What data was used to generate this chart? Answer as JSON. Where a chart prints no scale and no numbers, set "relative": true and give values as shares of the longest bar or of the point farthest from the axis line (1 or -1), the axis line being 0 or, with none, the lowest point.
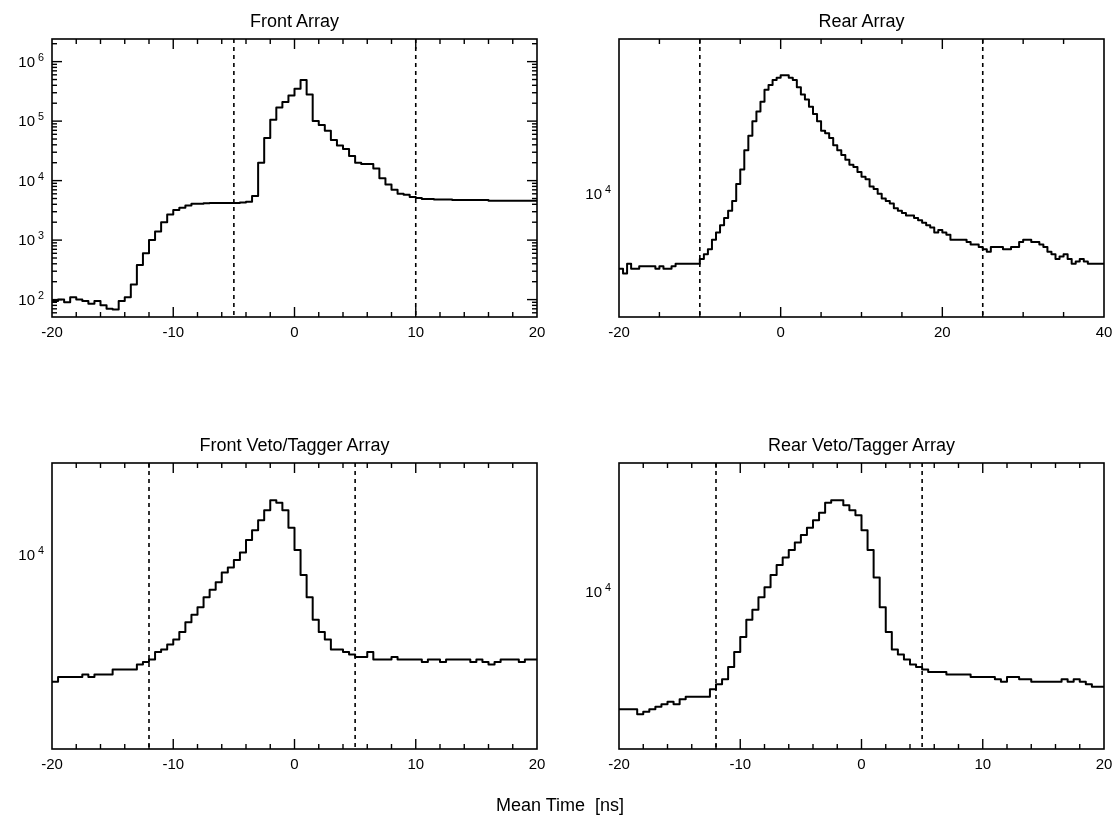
{
  "chart_data": [
    {
      "type": "histogram",
      "title": "Front Array",
      "color": "#000000",
      "log": "y",
      "bins": [
        -20,
        -19.5,
        -19,
        -18.5,
        -18,
        -17.5,
        -17,
        -16.5,
        -16,
        -15.5,
        -15,
        -14.5,
        -14,
        -13.5,
        -13,
        -12.5,
        -12,
        -11.5,
        -11,
        -10.5,
        -10,
        -9.5,
        -9,
        -8.5,
        -8,
        -7.5,
        -7,
        -6.5,
        -6,
        -5.5,
        -5,
        -4.5,
        -4,
        -3.5,
        -3,
        -2.5,
        -2,
        -1.5,
        -1,
        -0.5,
        0,
        0.5,
        1,
        1.5,
        2,
        2.5,
        3,
        3.5,
        4,
        4.5,
        5,
        5.5,
        6,
        6.5,
        7,
        7.5,
        8,
        8.5,
        9,
        9.5,
        10,
        10.5,
        11,
        11.5,
        12,
        12.5,
        13,
        13.5,
        14,
        14.5,
        15,
        15.5,
        16,
        16.5,
        17,
        17.5,
        18,
        18.5,
        19,
        19.5,
        20
      ],
      "values": [
        95,
        100,
        90,
        110,
        100,
        95,
        85,
        95,
        80,
        70,
        68,
        95,
        110,
        180,
        380,
        600,
        1000,
        1400,
        2000,
        2700,
        3200,
        3500,
        3800,
        4100,
        4100,
        4150,
        4200,
        4200,
        4200,
        4200,
        4200,
        4300,
        4400,
        5500,
        20000,
        52000,
        105000,
        170000,
        210000,
        270000,
        350000,
        490000,
        280000,
        100000,
        86000,
        69000,
        48000,
        39000,
        34000,
        26000,
        20000,
        19000,
        19000,
        16000,
        11000,
        8600,
        7000,
        6000,
        5800,
        5300,
        5100,
        4900,
        4900,
        4800,
        4800,
        4800,
        4700,
        4700,
        4700,
        4700,
        4700,
        4700,
        4600,
        4600,
        4600,
        4600,
        4600,
        4600,
        4600,
        4600
      ],
      "xlim": [
        -20,
        20
      ],
      "xticks": [
        -20,
        {
          "value": -18,
          "label": null
        },
        {
          "value": -16,
          "label": null
        },
        {
          "value": -14,
          "label": null
        },
        {
          "value": -12,
          "label": null
        },
        -10,
        {
          "value": -8,
          "label": null
        },
        {
          "value": -6,
          "label": null
        },
        {
          "value": -4,
          "label": null
        },
        {
          "value": -2,
          "label": null
        },
        0,
        {
          "value": 2,
          "label": null
        },
        {
          "value": 4,
          "label": null
        },
        {
          "value": 6,
          "label": null
        },
        {
          "value": 8,
          "label": null
        },
        10,
        {
          "value": 12,
          "label": null
        },
        {
          "value": 14,
          "label": null
        },
        {
          "value": 16,
          "label": null
        },
        {
          "value": 18,
          "label": null
        },
        20
      ],
      "ylim": [
        51,
        2400000
      ],
      "yticks": [
        {
          "value": 60,
          "label": null
        },
        {
          "value": 70,
          "label": null
        },
        {
          "value": 80,
          "label": null
        },
        {
          "value": 90,
          "label": null
        },
        {
          "value": 100,
          "label": "10$^{2}$"
        },
        {
          "value": 200,
          "label": null
        },
        {
          "value": 300,
          "label": null
        },
        {
          "value": 400,
          "label": null
        },
        {
          "value": 500,
          "label": null
        },
        {
          "value": 600,
          "label": null
        },
        {
          "value": 700,
          "label": null
        },
        {
          "value": 800,
          "label": null
        },
        {
          "value": 900,
          "label": null
        },
        {
          "value": 1000,
          "label": "10$^{3}$"
        },
        {
          "value": 2000,
          "label": null
        },
        {
          "value": 3000,
          "label": null
        },
        {
          "value": 4000,
          "label": null
        },
        {
          "value": 5000,
          "label": null
        },
        {
          "value": 6000,
          "label": null
        },
        {
          "value": 7000,
          "label": null
        },
        {
          "value": 8000,
          "label": null
        },
        {
          "value": 9000,
          "label": null
        },
        {
          "value": 10000,
          "label": "10$^{4}$"
        },
        {
          "value": 20000,
          "label": null
        },
        {
          "value": 30000,
          "label": null
        },
        {
          "value": 40000,
          "label": null
        },
        {
          "value": 50000,
          "label": null
        },
        {
          "value": 60000,
          "label": null
        },
        {
          "value": 70000,
          "label": null
        },
        {
          "value": 80000,
          "label": null
        },
        {
          "value": 90000,
          "label": null
        },
        {
          "value": 100000,
          "label": "10$^{5}$"
        },
        {
          "value": 200000,
          "label": null
        },
        {
          "value": 300000,
          "label": null
        },
        {
          "value": 400000,
          "label": null
        },
        {
          "value": 500000,
          "label": null
        },
        {
          "value": 600000,
          "label": null
        },
        {
          "value": 700000,
          "label": null
        },
        {
          "value": 800000,
          "label": null
        },
        {
          "value": 900000,
          "label": null
        },
        {
          "value": 1000000,
          "label": "10$^{6}$"
        },
        {
          "value": 2000000,
          "label": null
        }
      ],
      "ref_lines": [
        {
          "axis": "x",
          "value": -5,
          "line_style": "dashed"
        },
        {
          "axis": "x",
          "value": 10,
          "line_style": "dashed"
        }
      ]
    },
    {
      "type": "line",
      "title": "Rear Array",
      "color": "#000000",
      "relative": true,
      "x": [
        -20,
        -19.5,
        -19.5,
        -19,
        -19,
        -18.5,
        -18.5,
        -18,
        -18,
        -17.5,
        -17.5,
        -17,
        -17,
        -16.5,
        -16.5,
        -16,
        -16,
        -15.5,
        -15.5,
        -15,
        -15,
        -14.5,
        -14.5,
        -14,
        -14,
        -13.5,
        -13.5,
        -13,
        -13,
        -12.5,
        -12.5,
        -12,
        -12,
        -11.5,
        -11.5,
        -11,
        -11,
        -10.5,
        -10.5,
        -10,
        -10,
        -9.5,
        -9.5,
        -9,
        -9,
        -8.5,
        -8.5,
        -8,
        -8,
        -7.5,
        -7.5,
        -7,
        -7,
        -6.5,
        -6.5,
        -6,
        -6,
        -5.5,
        -5.5,
        -5,
        -5,
        -4.5,
        -4.5,
        -4,
        -4,
        -3.5,
        -3.5,
        -3,
        -3,
        -2.5,
        -2.5,
        -2,
        -2,
        -1.5,
        -1.5,
        -1,
        -1,
        -0.5,
        -0.5,
        0,
        0,
        0.5,
        0.5,
        1,
        1,
        1.5,
        1.5,
        2,
        2,
        2.5,
        2.5,
        3,
        3,
        3.5,
        3.5,
        4,
        4,
        4.5,
        4.5,
        5,
        5,
        5.5,
        5.5,
        6,
        6,
        6.5,
        6.5,
        7,
        7,
        7.5,
        7.5,
        8,
        8,
        8.5,
        8.5,
        9,
        9,
        9.5,
        9.5,
        10,
        10,
        10.5,
        10.5,
        11,
        11,
        11.5,
        11.5,
        12,
        12,
        12.5,
        12.5,
        13,
        13,
        13.5,
        13.5,
        14,
        14,
        14.5,
        14.5,
        15,
        15,
        15.5,
        15.5,
        16,
        16,
        16.5,
        16.5,
        17,
        17,
        17.5,
        17.5,
        18,
        18,
        18.5,
        18.5,
        19,
        19,
        19.5,
        19.5,
        20,
        20,
        20.5,
        20.5,
        21,
        21,
        21.5,
        21.5,
        22,
        22,
        22.5,
        22.5,
        23,
        23,
        23.5,
        23.5,
        24,
        24,
        24.5,
        24.5,
        25,
        25,
        25.5,
        25.5,
        26,
        26,
        26.5,
        26.5,
        27,
        27,
        27.5,
        27.5,
        28,
        28,
        28.5,
        28.5,
        29,
        29,
        29.5,
        29.5,
        30,
        30,
        30.5,
        30.5,
        31,
        31,
        31.5,
        31.5,
        32,
        32,
        32.5,
        32.5,
        33,
        33,
        33.5,
        33.5,
        34,
        34,
        34.5,
        34.5,
        35,
        35,
        35.5,
        35.5,
        36,
        36,
        36.5,
        36.5,
        37,
        37,
        37.5,
        37.5,
        38,
        38,
        38.5,
        38.5,
        39,
        39,
        39.5,
        39.5,
        40
      ],
      "values": [
        0.2,
        0.2,
        0.18,
        0.18,
        0.22,
        0.22,
        0.2,
        0.2,
        0.2,
        0.2,
        0.21,
        0.21,
        0.21,
        0.21,
        0.21,
        0.21,
        0.21,
        0.21,
        0.2,
        0.2,
        0.21,
        0.21,
        0.2,
        0.2,
        0.2,
        0.2,
        0.21,
        0.21,
        0.22,
        0.22,
        0.22,
        0.22,
        0.22,
        0.22,
        0.22,
        0.22,
        0.22,
        0.22,
        0.22,
        0.22,
        0.24,
        0.24,
        0.26,
        0.26,
        0.28,
        0.28,
        0.32,
        0.32,
        0.35,
        0.35,
        0.38,
        0.38,
        0.41,
        0.41,
        0.44,
        0.44,
        0.48,
        0.48,
        0.55,
        0.55,
        0.61,
        0.61,
        0.69,
        0.69,
        0.75,
        0.75,
        0.81,
        0.81,
        0.85,
        0.85,
        0.89,
        0.89,
        0.94,
        0.94,
        0.96,
        0.96,
        0.98,
        0.98,
        0.99,
        0.99,
        1,
        1,
        1,
        1,
        0.99,
        0.99,
        0.98,
        0.98,
        0.95,
        0.95,
        0.92,
        0.92,
        0.9,
        0.9,
        0.87,
        0.87,
        0.84,
        0.84,
        0.81,
        0.81,
        0.77,
        0.77,
        0.76,
        0.76,
        0.74,
        0.74,
        0.71,
        0.71,
        0.69,
        0.69,
        0.67,
        0.67,
        0.65,
        0.65,
        0.63,
        0.63,
        0.62,
        0.62,
        0.6,
        0.6,
        0.58,
        0.58,
        0.57,
        0.57,
        0.54,
        0.54,
        0.53,
        0.53,
        0.51,
        0.51,
        0.49,
        0.49,
        0.48,
        0.48,
        0.47,
        0.47,
        0.45,
        0.45,
        0.44,
        0.44,
        0.43,
        0.43,
        0.42,
        0.42,
        0.42,
        0.42,
        0.41,
        0.41,
        0.4,
        0.4,
        0.39,
        0.39,
        0.38,
        0.38,
        0.37,
        0.37,
        0.35,
        0.35,
        0.36,
        0.36,
        0.35,
        0.35,
        0.34,
        0.34,
        0.32,
        0.32,
        0.32,
        0.32,
        0.32,
        0.32,
        0.32,
        0.32,
        0.31,
        0.31,
        0.3,
        0.3,
        0.3,
        0.3,
        0.29,
        0.29,
        0.28,
        0.28,
        0.27,
        0.27,
        0.29,
        0.29,
        0.29,
        0.29,
        0.29,
        0.29,
        0.28,
        0.28,
        0.28,
        0.28,
        0.29,
        0.29,
        0.29,
        0.29,
        0.31,
        0.31,
        0.32,
        0.32,
        0.32,
        0.32,
        0.31,
        0.31,
        0.31,
        0.31,
        0.3,
        0.3,
        0.29,
        0.29,
        0.27,
        0.27,
        0.26,
        0.26,
        0.24,
        0.24,
        0.25,
        0.25,
        0.26,
        0.26,
        0.24,
        0.24,
        0.22,
        0.22,
        0.23,
        0.23,
        0.24,
        0.24,
        0.23,
        0.23,
        0.22,
        0.22,
        0.22,
        0.22,
        0.22,
        0.22,
        0.22,
        0.22
      ],
      "xlim": [
        -20,
        40
      ],
      "xticks": [
        -20,
        {
          "value": -15,
          "label": null
        },
        {
          "value": -10,
          "label": null
        },
        {
          "value": -5,
          "label": null
        },
        0,
        {
          "value": 5,
          "label": null
        },
        {
          "value": 10,
          "label": null
        },
        {
          "value": 15,
          "label": null
        },
        20,
        {
          "value": 25,
          "label": null
        },
        {
          "value": 30,
          "label": null
        },
        {
          "value": 35,
          "label": null
        },
        40
      ],
      "ref_lines": [
        {
          "axis": "x",
          "value": -10,
          "line_style": "dashed"
        },
        {
          "axis": "x",
          "value": 25,
          "line_style": "dashed"
        }
      ],
      "annotations": [
        "10$^{4}$"
      ]
    },
    {
      "type": "line",
      "title": "Front Veto/Tagger Array",
      "color": "#000000",
      "relative": true,
      "x": [
        -20,
        -19.5,
        -19.5,
        -19,
        -19,
        -18.5,
        -18.5,
        -18,
        -18,
        -17.5,
        -17.5,
        -17,
        -17,
        -16.5,
        -16.5,
        -16,
        -16,
        -15.5,
        -15.5,
        -15,
        -15,
        -14.5,
        -14.5,
        -14,
        -14,
        -13.5,
        -13.5,
        -13,
        -13,
        -12.5,
        -12.5,
        -12,
        -12,
        -11.5,
        -11.5,
        -11,
        -11,
        -10.5,
        -10.5,
        -10,
        -10,
        -9.5,
        -9.5,
        -9,
        -9,
        -8.5,
        -8.5,
        -8,
        -8,
        -7.5,
        -7.5,
        -7,
        -7,
        -6.5,
        -6.5,
        -6,
        -6,
        -5.5,
        -5.5,
        -5,
        -5,
        -4.5,
        -4.5,
        -4,
        -4,
        -3.5,
        -3.5,
        -3,
        -3,
        -2.5,
        -2.5,
        -2,
        -2,
        -1.5,
        -1.5,
        -1,
        -1,
        -0.5,
        -0.5,
        0,
        0,
        0.5,
        0.5,
        1,
        1,
        1.5,
        1.5,
        2,
        2,
        2.5,
        2.5,
        3,
        3,
        3.5,
        3.5,
        4,
        4,
        4.5,
        4.5,
        5,
        5,
        5.5,
        5.5,
        6,
        6,
        6.5,
        6.5,
        7,
        7,
        7.5,
        7.5,
        8,
        8,
        8.5,
        8.5,
        9,
        9,
        9.5,
        9.5,
        10,
        10,
        10.5,
        10.5,
        11,
        11,
        11.5,
        11.5,
        12,
        12,
        12.5,
        12.5,
        13,
        13,
        13.5,
        13.5,
        14,
        14,
        14.5,
        14.5,
        15,
        15,
        15.5,
        15.5,
        16,
        16,
        16.5,
        16.5,
        17,
        17,
        17.5,
        17.5,
        18,
        18,
        18.5,
        18.5,
        19,
        19,
        19.5,
        19.5,
        20
      ],
      "values": [
        0.27,
        0.27,
        0.29,
        0.29,
        0.29,
        0.29,
        0.29,
        0.29,
        0.29,
        0.29,
        0.3,
        0.3,
        0.29,
        0.29,
        0.3,
        0.3,
        0.3,
        0.3,
        0.3,
        0.3,
        0.32,
        0.32,
        0.32,
        0.32,
        0.32,
        0.32,
        0.32,
        0.32,
        0.34,
        0.34,
        0.35,
        0.35,
        0.36,
        0.36,
        0.39,
        0.39,
        0.4,
        0.4,
        0.42,
        0.42,
        0.44,
        0.44,
        0.47,
        0.47,
        0.51,
        0.51,
        0.54,
        0.54,
        0.57,
        0.57,
        0.61,
        0.61,
        0.64,
        0.64,
        0.67,
        0.67,
        0.71,
        0.71,
        0.73,
        0.73,
        0.76,
        0.76,
        0.79,
        0.79,
        0.84,
        0.84,
        0.88,
        0.88,
        0.92,
        0.92,
        0.96,
        0.96,
        1,
        1,
        0.99,
        0.99,
        0.96,
        0.96,
        0.89,
        0.89,
        0.8,
        0.8,
        0.7,
        0.7,
        0.61,
        0.61,
        0.52,
        0.52,
        0.47,
        0.47,
        0.44,
        0.44,
        0.4,
        0.4,
        0.4,
        0.4,
        0.39,
        0.39,
        0.38,
        0.38,
        0.37,
        0.37,
        0.37,
        0.37,
        0.39,
        0.39,
        0.36,
        0.36,
        0.36,
        0.36,
        0.36,
        0.36,
        0.37,
        0.37,
        0.36,
        0.36,
        0.36,
        0.36,
        0.36,
        0.36,
        0.36,
        0.36,
        0.35,
        0.35,
        0.36,
        0.36,
        0.36,
        0.36,
        0.35,
        0.35,
        0.36,
        0.36,
        0.36,
        0.36,
        0.36,
        0.36,
        0.36,
        0.36,
        0.35,
        0.35,
        0.36,
        0.36,
        0.35,
        0.35,
        0.34,
        0.34,
        0.35,
        0.35,
        0.36,
        0.36,
        0.36,
        0.36,
        0.36,
        0.36,
        0.35,
        0.35,
        0.36,
        0.36,
        0.36,
        0.36
      ],
      "xlim": [
        -20,
        20
      ],
      "xticks": [
        -20,
        {
          "value": -18,
          "label": null
        },
        {
          "value": -16,
          "label": null
        },
        {
          "value": -14,
          "label": null
        },
        {
          "value": -12,
          "label": null
        },
        -10,
        {
          "value": -8,
          "label": null
        },
        {
          "value": -6,
          "label": null
        },
        {
          "value": -4,
          "label": null
        },
        {
          "value": -2,
          "label": null
        },
        0,
        {
          "value": 2,
          "label": null
        },
        {
          "value": 4,
          "label": null
        },
        {
          "value": 6,
          "label": null
        },
        {
          "value": 8,
          "label": null
        },
        10,
        {
          "value": 12,
          "label": null
        },
        {
          "value": 14,
          "label": null
        },
        {
          "value": 16,
          "label": null
        },
        {
          "value": 18,
          "label": null
        },
        20
      ],
      "ref_lines": [
        {
          "axis": "x",
          "value": -12,
          "line_style": "dashed"
        },
        {
          "axis": "x",
          "value": 5,
          "line_style": "dashed"
        }
      ],
      "annotations": [
        "10$^{4}$"
      ]
    },
    {
      "type": "line",
      "title": "Rear Veto/Tagger Array",
      "color": "#000000",
      "relative": true,
      "x": [
        -20,
        -19.5,
        -19.5,
        -19,
        -19,
        -18.5,
        -18.5,
        -18,
        -18,
        -17.5,
        -17.5,
        -17,
        -17,
        -16.5,
        -16.5,
        -16,
        -16,
        -15.5,
        -15.5,
        -15,
        -15,
        -14.5,
        -14.5,
        -14,
        -14,
        -13.5,
        -13.5,
        -13,
        -13,
        -12.5,
        -12.5,
        -12,
        -12,
        -11.5,
        -11.5,
        -11,
        -11,
        -10.5,
        -10.5,
        -10,
        -10,
        -9.5,
        -9.5,
        -9,
        -9,
        -8.5,
        -8.5,
        -8,
        -8,
        -7.5,
        -7.5,
        -7,
        -7,
        -6.5,
        -6.5,
        -6,
        -6,
        -5.5,
        -5.5,
        -5,
        -5,
        -4.5,
        -4.5,
        -4,
        -4,
        -3.5,
        -3.5,
        -3,
        -3,
        -2.5,
        -2.5,
        -2,
        -2,
        -1.5,
        -1.5,
        -1,
        -1,
        -0.5,
        -0.5,
        0,
        0,
        0.5,
        0.5,
        1,
        1,
        1.5,
        1.5,
        2,
        2,
        2.5,
        2.5,
        3,
        3,
        3.5,
        3.5,
        4,
        4,
        4.5,
        4.5,
        5,
        5,
        5.5,
        5.5,
        6,
        6,
        6.5,
        6.5,
        7,
        7,
        7.5,
        7.5,
        8,
        8,
        8.5,
        8.5,
        9,
        9,
        9.5,
        9.5,
        10,
        10,
        10.5,
        10.5,
        11,
        11,
        11.5,
        11.5,
        12,
        12,
        12.5,
        12.5,
        13,
        13,
        13.5,
        13.5,
        14,
        14,
        14.5,
        14.5,
        15,
        15,
        15.5,
        15.5,
        16,
        16,
        16.5,
        16.5,
        17,
        17,
        17.5,
        17.5,
        18,
        18,
        18.5,
        18.5,
        19,
        19,
        19.5,
        19.5,
        20
      ],
      "values": [
        0.16,
        0.16,
        0.16,
        0.16,
        0.16,
        0.16,
        0.14,
        0.14,
        0.15,
        0.15,
        0.16,
        0.16,
        0.17,
        0.17,
        0.18,
        0.18,
        0.19,
        0.19,
        0.18,
        0.18,
        0.2,
        0.2,
        0.21,
        0.21,
        0.21,
        0.21,
        0.21,
        0.21,
        0.21,
        0.21,
        0.24,
        0.24,
        0.26,
        0.26,
        0.28,
        0.28,
        0.33,
        0.33,
        0.39,
        0.39,
        0.45,
        0.45,
        0.52,
        0.52,
        0.56,
        0.56,
        0.61,
        0.61,
        0.65,
        0.65,
        0.7,
        0.7,
        0.74,
        0.74,
        0.77,
        0.77,
        0.8,
        0.8,
        0.83,
        0.83,
        0.86,
        0.86,
        0.89,
        0.89,
        0.92,
        0.92,
        0.95,
        0.95,
        0.99,
        0.99,
        1,
        1,
        1,
        1,
        0.98,
        0.98,
        0.96,
        0.96,
        0.94,
        0.94,
        0.88,
        0.88,
        0.8,
        0.8,
        0.69,
        0.69,
        0.57,
        0.57,
        0.47,
        0.47,
        0.4,
        0.4,
        0.38,
        0.38,
        0.36,
        0.36,
        0.34,
        0.34,
        0.33,
        0.33,
        0.32,
        0.32,
        0.31,
        0.31,
        0.31,
        0.31,
        0.31,
        0.31,
        0.3,
        0.3,
        0.3,
        0.3,
        0.3,
        0.3,
        0.3,
        0.3,
        0.29,
        0.29,
        0.29,
        0.29,
        0.29,
        0.29,
        0.29,
        0.29,
        0.28,
        0.28,
        0.27,
        0.27,
        0.29,
        0.29,
        0.29,
        0.29,
        0.28,
        0.28,
        0.28,
        0.28,
        0.27,
        0.27,
        0.27,
        0.27,
        0.27,
        0.27,
        0.27,
        0.27,
        0.27,
        0.27,
        0.28,
        0.28,
        0.27,
        0.27,
        0.28,
        0.28,
        0.27,
        0.27,
        0.26,
        0.26,
        0.25,
        0.25,
        0.25,
        0.25
      ],
      "xlim": [
        -20,
        20
      ],
      "xticks": [
        -20,
        {
          "value": -18,
          "label": null
        },
        {
          "value": -16,
          "label": null
        },
        {
          "value": -14,
          "label": null
        },
        {
          "value": -12,
          "label": null
        },
        -10,
        {
          "value": -8,
          "label": null
        },
        {
          "value": -6,
          "label": null
        },
        {
          "value": -4,
          "label": null
        },
        {
          "value": -2,
          "label": null
        },
        0,
        {
          "value": 2,
          "label": null
        },
        {
          "value": 4,
          "label": null
        },
        {
          "value": 6,
          "label": null
        },
        {
          "value": 8,
          "label": null
        },
        10,
        {
          "value": 12,
          "label": null
        },
        {
          "value": 14,
          "label": null
        },
        {
          "value": 16,
          "label": null
        },
        {
          "value": 18,
          "label": null
        },
        20
      ],
      "ref_lines": [
        {
          "axis": "x",
          "value": -12,
          "line_style": "dashed"
        },
        {
          "axis": "x",
          "value": 5,
          "line_style": "dashed"
        }
      ],
      "annotations": [
        "10$^{4}$",
        "Mean Time  [ns]"
      ]
    }
  ]
}
